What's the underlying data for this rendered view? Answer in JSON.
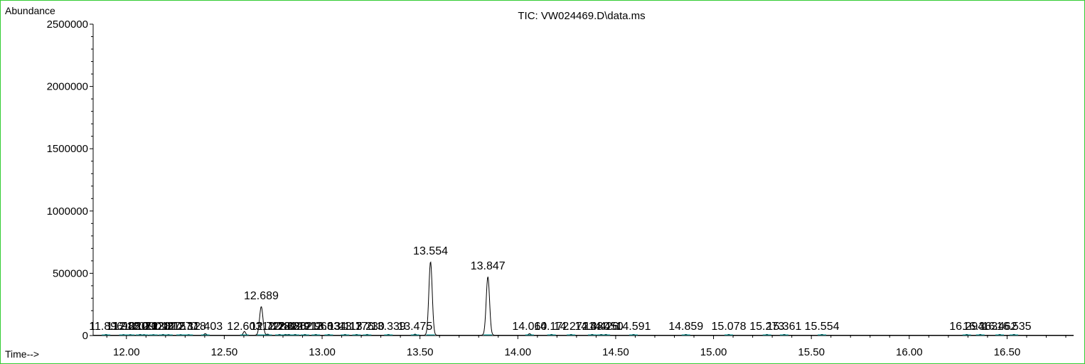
{
  "chart_data": {
    "type": "line",
    "title": "TIC: VW024469.D\\data.ms",
    "ylabel": "Abundance",
    "xlabel": "Time-->",
    "xlim": [
      11.83,
      16.84
    ],
    "ylim": [
      0,
      2500000
    ],
    "x_ticks": [
      12.0,
      12.5,
      13.0,
      13.5,
      14.0,
      14.5,
      15.0,
      15.5,
      16.0,
      16.5
    ],
    "x_tick_labels": [
      "12.00",
      "12.50",
      "13.00",
      "13.50",
      "14.00",
      "14.50",
      "15.00",
      "15.50",
      "16.00",
      "16.50"
    ],
    "y_ticks": [
      0,
      500000,
      1000000,
      1500000,
      2000000,
      2500000
    ],
    "y_tick_labels": [
      "0",
      "500000",
      "1000000",
      "1500000",
      "2000000",
      "2500000"
    ],
    "peaks": [
      {
        "rt": 11.896,
        "label": "11.896",
        "height": 6000
      },
      {
        "rt": 11.985,
        "label": "11.985",
        "height": 5000
      },
      {
        "rt": 12.02,
        "label": "12.020",
        "height": 5000
      },
      {
        "rt": 12.07,
        "label": "12.070",
        "height": 6000
      },
      {
        "rt": 12.09,
        "label": "12.090",
        "height": 5000
      },
      {
        "rt": 12.138,
        "label": "12.138",
        "height": 5000
      },
      {
        "rt": 12.187,
        "label": "12.187",
        "height": 6000
      },
      {
        "rt": 12.215,
        "label": "12.215",
        "height": 5000
      },
      {
        "rt": 12.277,
        "label": "12.277",
        "height": 5000
      },
      {
        "rt": 12.318,
        "label": "12.318",
        "height": 5000
      },
      {
        "rt": 12.403,
        "label": "12.403",
        "height": 12000
      },
      {
        "rt": 12.603,
        "label": "12.603",
        "height": 30000
      },
      {
        "rt": 12.689,
        "label": "12.689",
        "height": 230000
      },
      {
        "rt": 12.722,
        "label": "12.722",
        "height": 8000
      },
      {
        "rt": 12.782,
        "label": "12.782",
        "height": 6000
      },
      {
        "rt": 12.812,
        "label": "12.812",
        "height": 6000
      },
      {
        "rt": 12.83,
        "label": "12.830",
        "height": 6000
      },
      {
        "rt": 12.862,
        "label": "12.862",
        "height": 6000
      },
      {
        "rt": 12.912,
        "label": "12.912",
        "height": 6000
      },
      {
        "rt": 12.968,
        "label": "12.968",
        "height": 6000
      },
      {
        "rt": 13.034,
        "label": "13.034",
        "height": 6000
      },
      {
        "rt": 13.117,
        "label": "13.117",
        "height": 6000
      },
      {
        "rt": 13.176,
        "label": "13.176",
        "height": 6000
      },
      {
        "rt": 13.23,
        "label": "13.230",
        "height": 6000
      },
      {
        "rt": 13.339,
        "label": "13.339",
        "height": 6000
      },
      {
        "rt": 13.475,
        "label": "13.475",
        "height": 8000
      },
      {
        "rt": 13.554,
        "label": "13.554",
        "height": 590000
      },
      {
        "rt": 13.847,
        "label": "13.847",
        "height": 470000
      },
      {
        "rt": 14.06,
        "label": "14.060",
        "height": 12000
      },
      {
        "rt": 14.172,
        "label": "14.172",
        "height": 6000
      },
      {
        "rt": 14.272,
        "label": "14.272",
        "height": 6000
      },
      {
        "rt": 14.38,
        "label": "14.380",
        "height": 6000
      },
      {
        "rt": 14.426,
        "label": "14.426",
        "height": 6000
      },
      {
        "rt": 14.45,
        "label": "14.450",
        "height": 6000
      },
      {
        "rt": 14.591,
        "label": "14.591",
        "height": 6000
      },
      {
        "rt": 14.859,
        "label": "14.859",
        "height": 6000
      },
      {
        "rt": 15.078,
        "label": "15.078",
        "height": 6000
      },
      {
        "rt": 15.273,
        "label": "15.273",
        "height": 6000
      },
      {
        "rt": 15.361,
        "label": "15.361",
        "height": 6000
      },
      {
        "rt": 15.554,
        "label": "15.554",
        "height": 6000
      },
      {
        "rt": 16.294,
        "label": "16.294",
        "height": 6000
      },
      {
        "rt": 16.363,
        "label": "16.363",
        "height": 6000
      },
      {
        "rt": 16.462,
        "label": "16.462",
        "height": 6000
      },
      {
        "rt": 16.535,
        "label": "16.535",
        "height": 6000
      }
    ]
  }
}
